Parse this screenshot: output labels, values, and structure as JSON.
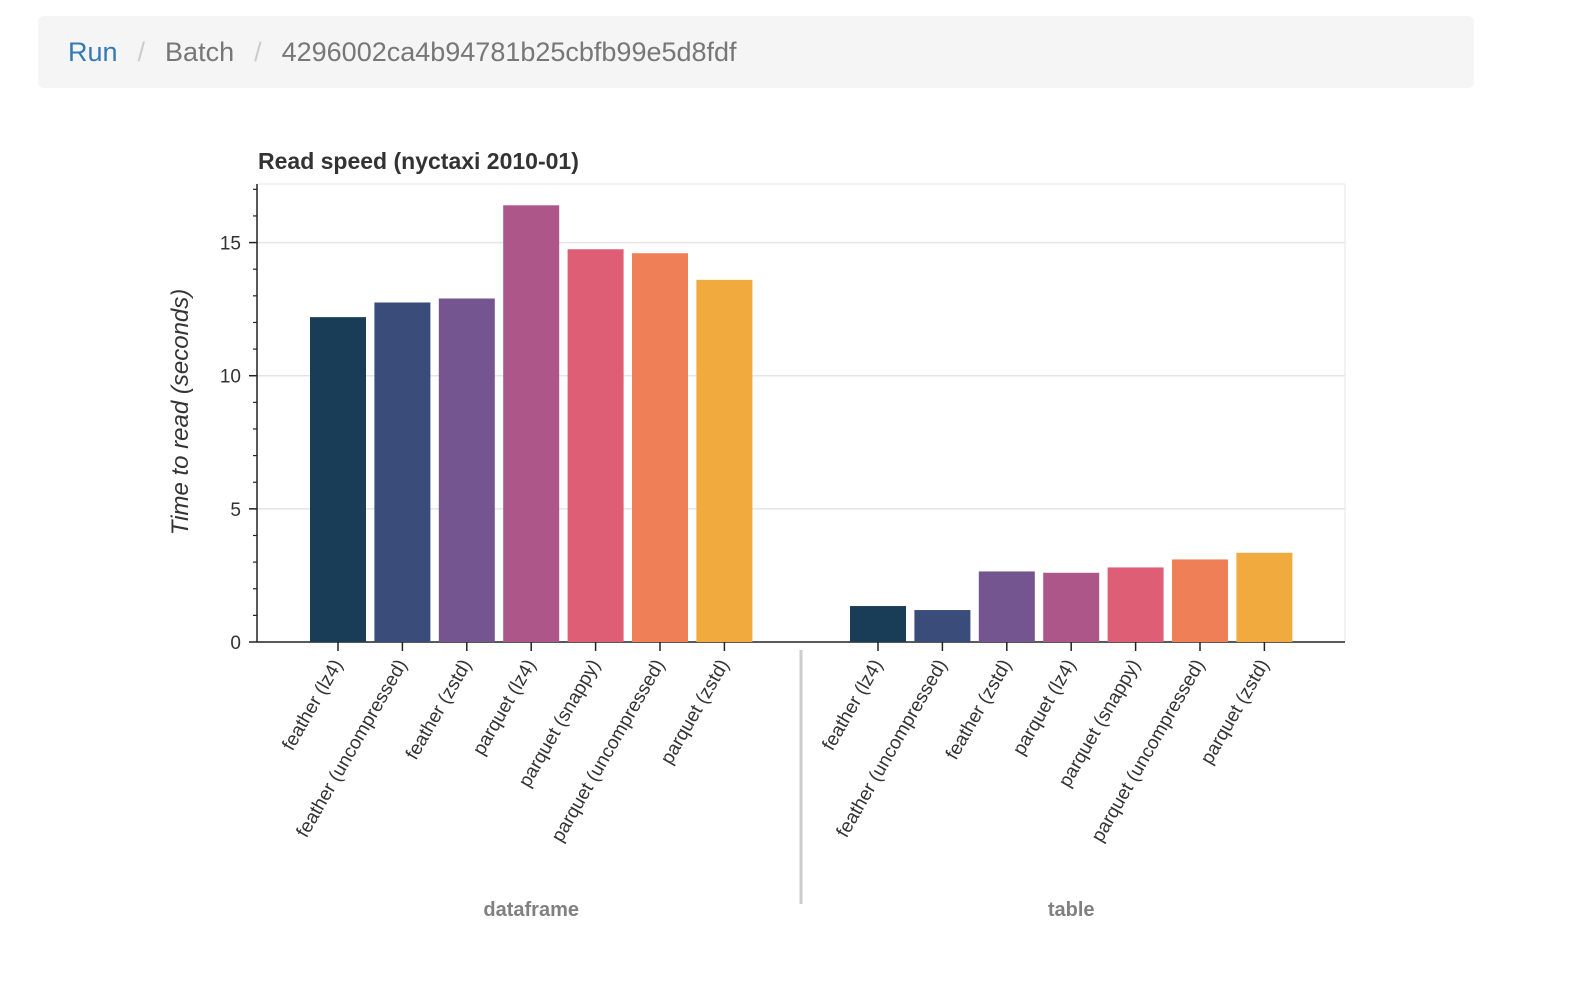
{
  "breadcrumb": {
    "run": "Run",
    "batch": "Batch",
    "separator": "/",
    "id": "4296002ca4b94781b25cbfb99e5d8fdf"
  },
  "chart_data": {
    "type": "bar",
    "title": "Read speed (nyctaxi 2010-01)",
    "xlabel": "",
    "ylabel": "Time to read (seconds)",
    "ylim": [
      0,
      17.2
    ],
    "yticks": [
      0,
      5,
      10,
      15
    ],
    "grid": "horizontal",
    "legend": "none",
    "groups": [
      {
        "name": "dataframe",
        "categories": [
          "feather (lz4)",
          "feather (uncompressed)",
          "feather (zstd)",
          "parquet (lz4)",
          "parquet (snappy)",
          "parquet (uncompressed)",
          "parquet (zstd)"
        ],
        "values": [
          12.2,
          12.75,
          12.9,
          16.4,
          14.75,
          14.6,
          13.6
        ]
      },
      {
        "name": "table",
        "categories": [
          "feather (lz4)",
          "feather (uncompressed)",
          "feather (zstd)",
          "parquet (lz4)",
          "parquet (snappy)",
          "parquet (uncompressed)",
          "parquet (zstd)"
        ],
        "values": [
          1.35,
          1.2,
          2.65,
          2.6,
          2.8,
          3.1,
          3.35
        ]
      }
    ],
    "colors": [
      "#1a3d57",
      "#3a4c7a",
      "#74558f",
      "#ad5689",
      "#de5f75",
      "#ee7f57",
      "#f0aa3d"
    ]
  }
}
